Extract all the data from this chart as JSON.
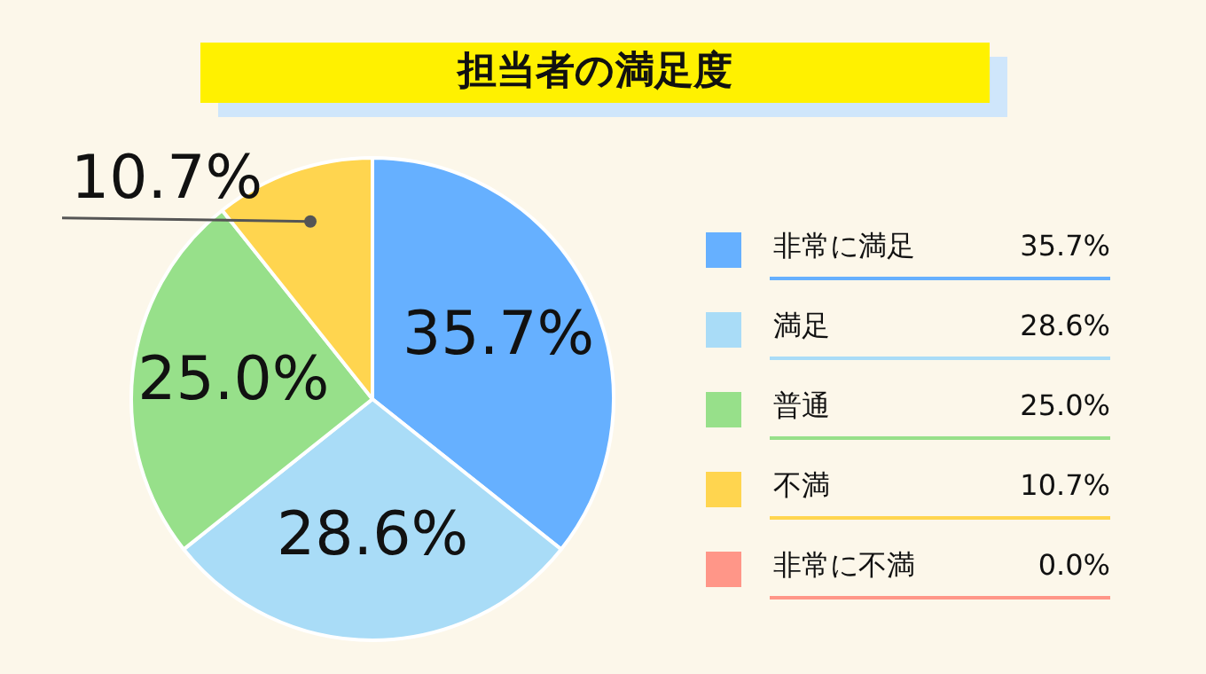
{
  "chart_data": {
    "type": "pie",
    "title": "担当者の満足度",
    "categories": [
      "非常に満足",
      "満足",
      "普通",
      "不満",
      "非常に不満"
    ],
    "values": [
      35.7,
      28.6,
      25.0,
      10.7,
      0.0
    ],
    "value_labels": [
      "35.7%",
      "28.6%",
      "25.0%",
      "10.7%",
      "0.0%"
    ],
    "colors": [
      "#66b0ff",
      "#a9dcf7",
      "#97e08a",
      "#ffd54f",
      "#ff9688"
    ],
    "legend": "right"
  }
}
